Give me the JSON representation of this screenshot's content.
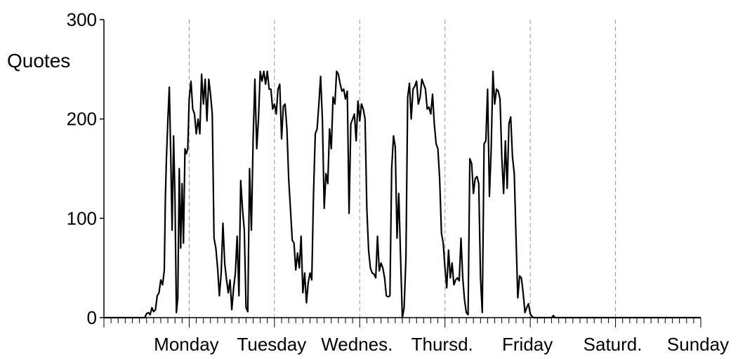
{
  "chart_data": {
    "type": "line",
    "ylabel": "Quotes",
    "ylim": [
      0,
      300
    ],
    "yticks": [
      0,
      100,
      200,
      300
    ],
    "xlim": [
      0,
      168
    ],
    "x_unit": "hours",
    "categories": [
      "Monday",
      "Tuesday",
      "Wednes.",
      "Thursd.",
      "Friday",
      "Saturd.",
      "Sunday"
    ],
    "category_boundaries": [
      24,
      48,
      72,
      96,
      120,
      144
    ],
    "grid": "vertical dashed at day boundaries",
    "series": [
      {
        "points": [
          [
            0,
            0
          ],
          [
            11.5,
            0
          ],
          [
            12,
            4
          ],
          [
            12.5,
            5
          ],
          [
            13,
            3
          ],
          [
            13.5,
            10
          ],
          [
            14,
            6
          ],
          [
            14.5,
            8
          ],
          [
            15,
            22
          ],
          [
            15.5,
            25
          ],
          [
            16,
            38
          ],
          [
            16.5,
            33
          ],
          [
            17,
            48
          ],
          [
            17.3,
            120
          ],
          [
            17.6,
            160
          ],
          [
            18,
            200
          ],
          [
            18.4,
            232
          ],
          [
            18.8,
            165
          ],
          [
            19.2,
            88
          ],
          [
            19.6,
            183
          ],
          [
            20,
            120
          ],
          [
            20.4,
            5
          ],
          [
            20.8,
            20
          ],
          [
            21.2,
            150
          ],
          [
            21.6,
            70
          ],
          [
            22,
            135
          ],
          [
            22.4,
            75
          ],
          [
            22.8,
            170
          ],
          [
            23.2,
            165
          ],
          [
            23.6,
            170
          ],
          [
            24,
            220
          ],
          [
            24.5,
            238
          ],
          [
            25,
            210
          ],
          [
            25.5,
            205
          ],
          [
            26,
            185
          ],
          [
            26.5,
            200
          ],
          [
            27,
            185
          ],
          [
            27.5,
            245
          ],
          [
            28,
            215
          ],
          [
            28.5,
            240
          ],
          [
            29,
            198
          ],
          [
            29.5,
            240
          ],
          [
            30,
            225
          ],
          [
            30.5,
            205
          ],
          [
            31,
            80
          ],
          [
            31.5,
            70
          ],
          [
            32,
            50
          ],
          [
            32.5,
            22
          ],
          [
            33,
            45
          ],
          [
            33.5,
            95
          ],
          [
            34,
            55
          ],
          [
            34.5,
            38
          ],
          [
            35,
            25
          ],
          [
            35.5,
            38
          ],
          [
            36,
            8
          ],
          [
            36.5,
            30
          ],
          [
            37,
            45
          ],
          [
            37.5,
            82
          ],
          [
            38,
            22
          ],
          [
            38.5,
            138
          ],
          [
            39,
            110
          ],
          [
            39.5,
            88
          ],
          [
            40,
            10
          ],
          [
            40.5,
            6
          ],
          [
            41,
            150
          ],
          [
            41.5,
            88
          ],
          [
            42,
            180
          ],
          [
            42.5,
            240
          ],
          [
            43,
            170
          ],
          [
            43.5,
            200
          ],
          [
            44,
            248
          ],
          [
            44.5,
            238
          ],
          [
            45,
            248
          ],
          [
            45.5,
            235
          ],
          [
            46,
            248
          ],
          [
            46.5,
            230
          ],
          [
            47,
            230
          ],
          [
            47.5,
            210
          ],
          [
            48,
            215
          ],
          [
            48.5,
            205
          ],
          [
            49,
            230
          ],
          [
            49.5,
            235
          ],
          [
            50,
            180
          ],
          [
            50.5,
            213
          ],
          [
            51,
            215
          ],
          [
            51.5,
            190
          ],
          [
            52,
            140
          ],
          [
            52.5,
            110
          ],
          [
            53,
            78
          ],
          [
            53.5,
            75
          ],
          [
            54,
            48
          ],
          [
            54.5,
            65
          ],
          [
            55,
            50
          ],
          [
            55.5,
            82
          ],
          [
            56,
            25
          ],
          [
            56.5,
            45
          ],
          [
            57,
            15
          ],
          [
            57.5,
            35
          ],
          [
            58,
            45
          ],
          [
            58.5,
            38
          ],
          [
            59,
            125
          ],
          [
            59.5,
            185
          ],
          [
            60,
            190
          ],
          [
            60.5,
            215
          ],
          [
            61,
            243
          ],
          [
            61.5,
            198
          ],
          [
            62,
            110
          ],
          [
            62.5,
            145
          ],
          [
            63,
            135
          ],
          [
            63.5,
            190
          ],
          [
            64,
            170
          ],
          [
            64.5,
            222
          ],
          [
            65,
            215
          ],
          [
            65.5,
            248
          ],
          [
            66,
            245
          ],
          [
            66.5,
            235
          ],
          [
            67,
            228
          ],
          [
            67.5,
            230
          ],
          [
            68,
            220
          ],
          [
            68.5,
            228
          ],
          [
            69,
            105
          ],
          [
            69.5,
            195
          ],
          [
            70,
            200
          ],
          [
            70.5,
            205
          ],
          [
            71,
            178
          ],
          [
            71.5,
            218
          ],
          [
            72,
            198
          ],
          [
            72.5,
            215
          ],
          [
            73,
            210
          ],
          [
            73.5,
            200
          ],
          [
            74,
            110
          ],
          [
            74.5,
            68
          ],
          [
            75,
            50
          ],
          [
            75.5,
            45
          ],
          [
            76,
            44
          ],
          [
            76.5,
            40
          ],
          [
            77,
            82
          ],
          [
            77.5,
            47
          ],
          [
            78,
            55
          ],
          [
            78.5,
            50
          ],
          [
            79,
            40
          ],
          [
            79.5,
            22
          ],
          [
            80,
            21
          ],
          [
            80.5,
            22
          ],
          [
            81,
            150
          ],
          [
            81.5,
            183
          ],
          [
            82,
            172
          ],
          [
            82.5,
            80
          ],
          [
            83,
            125
          ],
          [
            83.5,
            60
          ],
          [
            84,
            0
          ],
          [
            84.5,
            10
          ],
          [
            85,
            60
          ],
          [
            85.5,
            222
          ],
          [
            86,
            236
          ],
          [
            86.5,
            200
          ],
          [
            87,
            230
          ],
          [
            87.5,
            233
          ],
          [
            88,
            238
          ],
          [
            88.5,
            215
          ],
          [
            89,
            222
          ],
          [
            89.5,
            240
          ],
          [
            90,
            235
          ],
          [
            90.5,
            230
          ],
          [
            91,
            210
          ],
          [
            91.5,
            212
          ],
          [
            92,
            205
          ],
          [
            92.5,
            225
          ],
          [
            93,
            195
          ],
          [
            93.5,
            175
          ],
          [
            94,
            170
          ],
          [
            94.5,
            140
          ],
          [
            95,
            85
          ],
          [
            95.5,
            75
          ],
          [
            96,
            50
          ],
          [
            96.5,
            30
          ],
          [
            97,
            68
          ],
          [
            97.5,
            40
          ],
          [
            98,
            55
          ],
          [
            98.5,
            33
          ],
          [
            99,
            38
          ],
          [
            99.5,
            40
          ],
          [
            100,
            37
          ],
          [
            100.5,
            80
          ],
          [
            101,
            40
          ],
          [
            101.5,
            18
          ],
          [
            102,
            5
          ],
          [
            102.5,
            3
          ],
          [
            103,
            160
          ],
          [
            103.5,
            155
          ],
          [
            104,
            125
          ],
          [
            104.5,
            140
          ],
          [
            105,
            142
          ],
          [
            105.5,
            135
          ],
          [
            106,
            40
          ],
          [
            106.5,
            5
          ],
          [
            107,
            175
          ],
          [
            107.5,
            178
          ],
          [
            108,
            230
          ],
          [
            108.5,
            122
          ],
          [
            109,
            170
          ],
          [
            109.5,
            248
          ],
          [
            110,
            215
          ],
          [
            110.5,
            230
          ],
          [
            111,
            228
          ],
          [
            111.5,
            220
          ],
          [
            112,
            160
          ],
          [
            112.5,
            125
          ],
          [
            113,
            178
          ],
          [
            113.5,
            130
          ],
          [
            114,
            195
          ],
          [
            114.5,
            202
          ],
          [
            115,
            162
          ],
          [
            115.5,
            145
          ],
          [
            116,
            80
          ],
          [
            116.5,
            20
          ],
          [
            117,
            42
          ],
          [
            117.5,
            40
          ],
          [
            118,
            25
          ],
          [
            118.5,
            5
          ],
          [
            119,
            10
          ],
          [
            119.5,
            14
          ],
          [
            120,
            4
          ],
          [
            120.5,
            1
          ],
          [
            121,
            0
          ],
          [
            126,
            0
          ],
          [
            126.5,
            2
          ],
          [
            127,
            0
          ],
          [
            168,
            0
          ]
        ]
      }
    ]
  }
}
